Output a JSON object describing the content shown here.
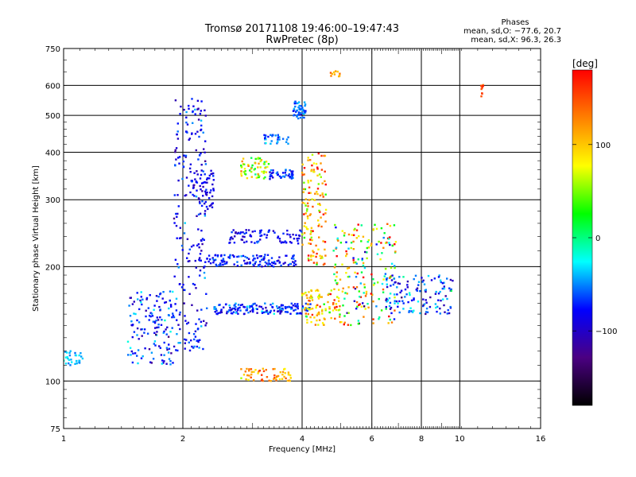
{
  "chart_data": {
    "type": "scatter",
    "title": "Tromsø 20171108 19:46:00–19:47:43",
    "subtitle": "RwPretec (8p)",
    "xlabel": "Frequency [MHz]",
    "ylabel": "Stationary phase Virtual Height [km]",
    "x_scale": "log",
    "y_scale": "log",
    "xlim": [
      1,
      16
    ],
    "ylim": [
      75,
      750
    ],
    "x_ticks": [
      1,
      2,
      4,
      6,
      8,
      10,
      16
    ],
    "x_tick_labels": [
      "1",
      "2",
      "4",
      "6",
      "8",
      "10",
      "16"
    ],
    "y_ticks": [
      75,
      100,
      200,
      300,
      400,
      500,
      600,
      750
    ],
    "y_tick_labels": [
      "75",
      "100",
      "200",
      "300",
      "400",
      "500",
      "600",
      "750"
    ],
    "grid": true,
    "stats": {
      "heading": "Phases",
      "line1": "mean, sd,O: −77.6, 20.7",
      "line2": "mean, sd,X:  96.3, 26.3"
    },
    "colorbar": {
      "label": "[deg]",
      "range": [
        -180,
        180
      ],
      "ticks": [
        -100,
        0,
        100
      ],
      "tick_labels": [
        "−100",
        "0",
        "100"
      ],
      "colors": [
        "#000000",
        "#4b0082",
        "#0000ff",
        "#00ffff",
        "#00ff00",
        "#ffff00",
        "#ff8000",
        "#ff0000"
      ]
    },
    "series": [
      {
        "f_range": [
          1.0,
          1.12
        ],
        "h_range": [
          110,
          120
        ],
        "n": 30,
        "phase_mean": -40,
        "phase_sd": 10
      },
      {
        "f_range": [
          1.45,
          1.9
        ],
        "h_range": [
          110,
          175
        ],
        "n": 140,
        "phase_mean": -70,
        "phase_sd": 25
      },
      {
        "f_range": [
          1.9,
          2.3
        ],
        "h_range": [
          120,
          560
        ],
        "n": 220,
        "phase_mean": -80,
        "phase_sd": 20
      },
      {
        "f_range": [
          2.1,
          2.4
        ],
        "h_range": [
          280,
          360
        ],
        "n": 60,
        "phase_mean": -90,
        "phase_sd": 15
      },
      {
        "f_range": [
          2.3,
          3.9
        ],
        "h_range": [
          200,
          215
        ],
        "n": 120,
        "phase_mean": -75,
        "phase_sd": 15
      },
      {
        "f_range": [
          2.4,
          4.2
        ],
        "h_range": [
          150,
          160
        ],
        "n": 160,
        "phase_mean": -70,
        "phase_sd": 20
      },
      {
        "f_range": [
          2.6,
          4.0
        ],
        "h_range": [
          230,
          250
        ],
        "n": 80,
        "phase_mean": -85,
        "phase_sd": 15
      },
      {
        "f_range": [
          2.8,
          3.3
        ],
        "h_range": [
          340,
          390
        ],
        "n": 60,
        "phase_mean": 60,
        "phase_sd": 40
      },
      {
        "f_range": [
          3.3,
          3.8
        ],
        "h_range": [
          340,
          360
        ],
        "n": 40,
        "phase_mean": -70,
        "phase_sd": 15
      },
      {
        "f_range": [
          3.2,
          3.7
        ],
        "h_range": [
          420,
          445
        ],
        "n": 30,
        "phase_mean": -50,
        "phase_sd": 15
      },
      {
        "f_range": [
          3.8,
          4.1
        ],
        "h_range": [
          490,
          545
        ],
        "n": 50,
        "phase_mean": -60,
        "phase_sd": 15
      },
      {
        "f_range": [
          2.8,
          3.8
        ],
        "h_range": [
          100,
          108
        ],
        "n": 60,
        "phase_mean": 120,
        "phase_sd": 25
      },
      {
        "f_range": [
          4.0,
          4.6
        ],
        "h_range": [
          200,
          400
        ],
        "n": 130,
        "phase_mean": 120,
        "phase_sd": 40
      },
      {
        "f_range": [
          4.0,
          5.0
        ],
        "h_range": [
          140,
          175
        ],
        "n": 90,
        "phase_mean": 90,
        "phase_sd": 40
      },
      {
        "f_range": [
          4.8,
          6.9
        ],
        "h_range": [
          140,
          260
        ],
        "n": 200,
        "phase_mean": 60,
        "phase_sd": 80
      },
      {
        "f_range": [
          6.5,
          9.6
        ],
        "h_range": [
          150,
          190
        ],
        "n": 130,
        "phase_mean": -70,
        "phase_sd": 30
      },
      {
        "f_range": [
          4.7,
          5.0
        ],
        "h_range": [
          630,
          660
        ],
        "n": 10,
        "phase_mean": 120,
        "phase_sd": 20
      },
      {
        "f_range": [
          11.3,
          11.5
        ],
        "h_range": [
          520,
          615
        ],
        "n": 10,
        "phase_mean": 150,
        "phase_sd": 20
      }
    ]
  }
}
